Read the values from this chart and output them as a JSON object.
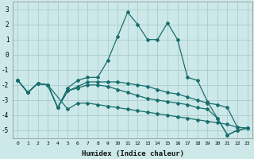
{
  "xlabel": "Humidex (Indice chaleur)",
  "background_color": "#cce8e8",
  "grid_color": "#aacccc",
  "line_color": "#1a6e6e",
  "xlim": [
    -0.5,
    23.5
  ],
  "ylim": [
    -5.5,
    3.5
  ],
  "xticks": [
    0,
    1,
    2,
    3,
    4,
    5,
    6,
    7,
    8,
    9,
    10,
    11,
    12,
    13,
    14,
    15,
    16,
    17,
    18,
    19,
    20,
    21,
    22,
    23
  ],
  "yticks": [
    -5,
    -4,
    -3,
    -2,
    -1,
    0,
    1,
    2,
    3
  ],
  "line1_x": [
    0,
    1,
    2,
    3,
    4,
    5,
    6,
    7,
    8,
    9,
    10,
    11,
    12,
    13,
    14,
    15,
    16,
    17,
    18,
    19,
    20,
    21,
    22,
    23
  ],
  "line1_y": [
    -1.7,
    -2.5,
    -1.9,
    -2.0,
    -3.5,
    -2.2,
    -1.7,
    -1.5,
    -1.5,
    -0.4,
    1.2,
    2.8,
    2.0,
    1.0,
    1.0,
    2.1,
    1.0,
    -1.5,
    -1.7,
    -3.1,
    -4.2,
    -5.3,
    -5.0,
    -4.85
  ],
  "line2_x": [
    0,
    1,
    2,
    3,
    4,
    5,
    6,
    7,
    8,
    9,
    10,
    11,
    12,
    13,
    14,
    15,
    16,
    17,
    18,
    19,
    20,
    21,
    22,
    23
  ],
  "line2_y": [
    -1.7,
    -2.5,
    -1.9,
    -2.0,
    -3.5,
    -2.4,
    -2.1,
    -1.8,
    -1.8,
    -1.8,
    -1.8,
    -1.9,
    -2.0,
    -2.1,
    -2.3,
    -2.5,
    -2.6,
    -2.8,
    -3.0,
    -3.2,
    -3.3,
    -3.5,
    -4.8,
    -4.85
  ],
  "line3_x": [
    0,
    1,
    2,
    3,
    4,
    5,
    6,
    7,
    8,
    9,
    10,
    11,
    12,
    13,
    14,
    15,
    16,
    17,
    18,
    19,
    20,
    21,
    22,
    23
  ],
  "line3_y": [
    -1.7,
    -2.5,
    -1.9,
    -2.0,
    -3.5,
    -2.4,
    -2.2,
    -2.0,
    -2.0,
    -2.1,
    -2.3,
    -2.5,
    -2.7,
    -2.9,
    -3.0,
    -3.1,
    -3.2,
    -3.3,
    -3.5,
    -3.6,
    -4.2,
    -5.3,
    -5.0,
    -4.85
  ],
  "line4_x": [
    0,
    1,
    2,
    3,
    5,
    6,
    7,
    8,
    9,
    10,
    11,
    12,
    13,
    14,
    15,
    16,
    17,
    18,
    19,
    20,
    21,
    22,
    23
  ],
  "line4_y": [
    -1.7,
    -2.5,
    -1.9,
    -2.0,
    -3.6,
    -3.2,
    -3.2,
    -3.3,
    -3.4,
    -3.5,
    -3.6,
    -3.7,
    -3.8,
    -3.9,
    -4.0,
    -4.1,
    -4.2,
    -4.3,
    -4.4,
    -4.5,
    -4.6,
    -4.8,
    -4.85
  ]
}
